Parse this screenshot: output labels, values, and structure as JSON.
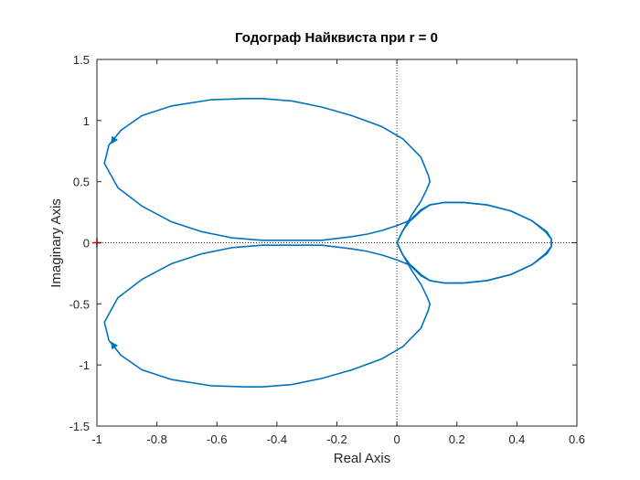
{
  "chart_data": {
    "type": "line",
    "title": "Годограф Найквиста при r = 0",
    "xlabel": "Real Axis",
    "ylabel": "Imaginary Axis",
    "xlim": [
      -1,
      0.6
    ],
    "ylim": [
      -1.5,
      1.5
    ],
    "xticks": [
      -1,
      -0.8,
      -0.6,
      -0.4,
      -0.2,
      0,
      0.2,
      0.4,
      0.6
    ],
    "xtick_labels": [
      "-1",
      "-0.8",
      "-0.6",
      "-0.4",
      "-0.2",
      "0",
      "0.2",
      "0.4",
      "0.6"
    ],
    "yticks": [
      1.5,
      1,
      0.5,
      0,
      -0.5,
      -1,
      -1.5
    ],
    "ytick_labels": [
      "1.5",
      "1",
      "0.5",
      "0",
      "-0.5",
      "-1",
      "-1.5"
    ],
    "grid": false,
    "zero_lines": "dotted",
    "critical_point": {
      "x": -1,
      "y": 0,
      "marker": "+",
      "color": "#ff0000"
    },
    "series": [
      {
        "color": "#0072bd",
        "x": [
          0.0,
          0.02,
          0.05,
          0.08,
          0.11,
          0.16,
          0.22,
          0.3,
          0.38,
          0.45,
          0.495,
          0.515,
          0.515,
          0.5,
          0.45,
          0.38,
          0.3,
          0.22,
          0.16,
          0.11,
          0.08,
          0.05,
          0.0,
          -0.05,
          -0.1,
          -0.15,
          -0.25,
          -0.35,
          -0.45,
          -0.55,
          -0.65,
          -0.75,
          -0.85,
          -0.93,
          -0.975,
          -0.96,
          -0.92,
          -0.85,
          -0.75,
          -0.62,
          -0.5,
          -0.45,
          -0.35,
          -0.25,
          -0.15,
          -0.05,
          0.02,
          0.08,
          0.105,
          0.11,
          0.1,
          0.08,
          0.05,
          0.02,
          0.0
        ],
        "y": [
          0.0,
          0.1,
          0.2,
          0.27,
          0.31,
          0.33,
          0.33,
          0.31,
          0.26,
          0.18,
          0.09,
          0.03,
          -0.03,
          -0.09,
          -0.18,
          -0.26,
          -0.31,
          -0.33,
          -0.33,
          -0.31,
          -0.26,
          -0.19,
          -0.14,
          -0.1,
          -0.07,
          -0.05,
          -0.02,
          -0.02,
          -0.02,
          -0.04,
          -0.09,
          -0.17,
          -0.3,
          -0.45,
          -0.65,
          -0.8,
          -0.92,
          -1.04,
          -1.12,
          -1.17,
          -1.18,
          -1.18,
          -1.16,
          -1.11,
          -1.04,
          -0.95,
          -0.85,
          -0.7,
          -0.55,
          -0.5,
          -0.44,
          -0.34,
          -0.23,
          -0.1,
          0.0
        ],
        "mirror_about_real_axis": true,
        "arrow_points": [
          {
            "x": -0.95,
            "y": 0.82
          },
          {
            "x": -0.95,
            "y": -0.82
          }
        ]
      }
    ]
  }
}
